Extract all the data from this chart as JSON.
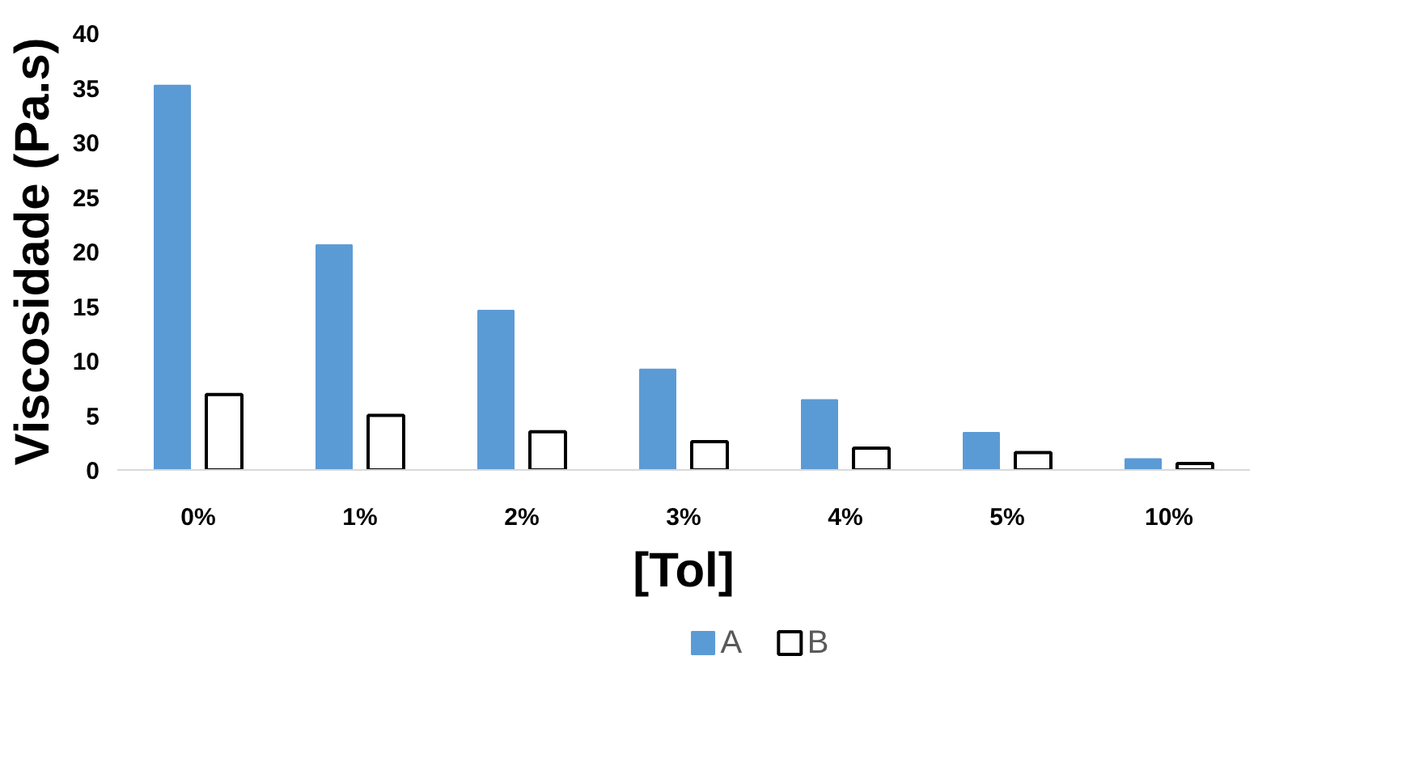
{
  "chart_data": {
    "type": "bar",
    "xlabel": "[Tol]",
    "ylabel": "Viscosidade (Pa.s)",
    "categories": [
      "0%",
      "1%",
      "2%",
      "3%",
      "4%",
      "5%",
      "10%"
    ],
    "series": [
      {
        "name": "A",
        "color": "#5b9bd5",
        "values": [
          35.2,
          20.6,
          14.6,
          9.2,
          6.4,
          3.4,
          1.0
        ]
      },
      {
        "name": "B",
        "color": "#ffffff",
        "values": [
          6.9,
          5.0,
          3.5,
          2.6,
          2.0,
          1.6,
          0.6
        ]
      }
    ],
    "ylim": [
      0,
      40
    ],
    "yticks": [
      0,
      5,
      10,
      15,
      20,
      25,
      30,
      35,
      40
    ],
    "grid": false,
    "legend": "bottom"
  }
}
